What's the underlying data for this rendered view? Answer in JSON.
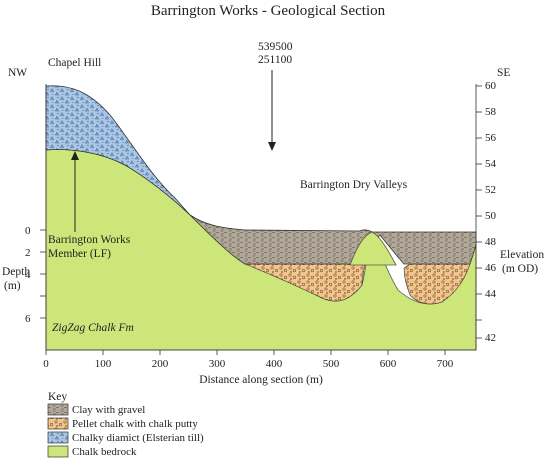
{
  "title": "Barrington Works - Geological Section",
  "orientation": {
    "left": "NW",
    "right": "SE"
  },
  "grid_ref": {
    "easting": "539500",
    "northing": "251100"
  },
  "place_labels": {
    "chapel_hill": "Chapel Hill",
    "dry_valleys": "Barrington Dry Valleys",
    "member_line1": "Barrington Works",
    "member_line2": "Member (LF)",
    "formation": "ZigZag Chalk Fm"
  },
  "x_axis": {
    "label": "Distance along section (m)",
    "ticks": [
      "0",
      "100",
      "200",
      "300",
      "400",
      "500",
      "600",
      "700"
    ]
  },
  "depth_axis": {
    "label_line1": "Depth",
    "label_line2": "(m)",
    "ticks": [
      "0",
      "2",
      "4",
      "6"
    ]
  },
  "elevation_axis": {
    "label_line1": "Elevation",
    "label_line2": "(m OD)",
    "ticks": [
      "60",
      "58",
      "56",
      "54",
      "52",
      "50",
      "48",
      "46",
      "44",
      "42"
    ]
  },
  "key": {
    "heading": "Key",
    "items": [
      {
        "label": "Clay with gravel",
        "color": "#b1a899"
      },
      {
        "label": "Pellet chalk with chalk putty",
        "color": "#f4c58e"
      },
      {
        "label": "Chalky diamict (Elsterian till)",
        "color": "#a9c6e6"
      },
      {
        "label": "Chalk bedrock",
        "color": "#cde67a"
      }
    ]
  },
  "colors": {
    "chalk": "#cde67a",
    "till": "#a9c6e6",
    "pellet": "#f4c58e",
    "clay": "#b1a899"
  }
}
